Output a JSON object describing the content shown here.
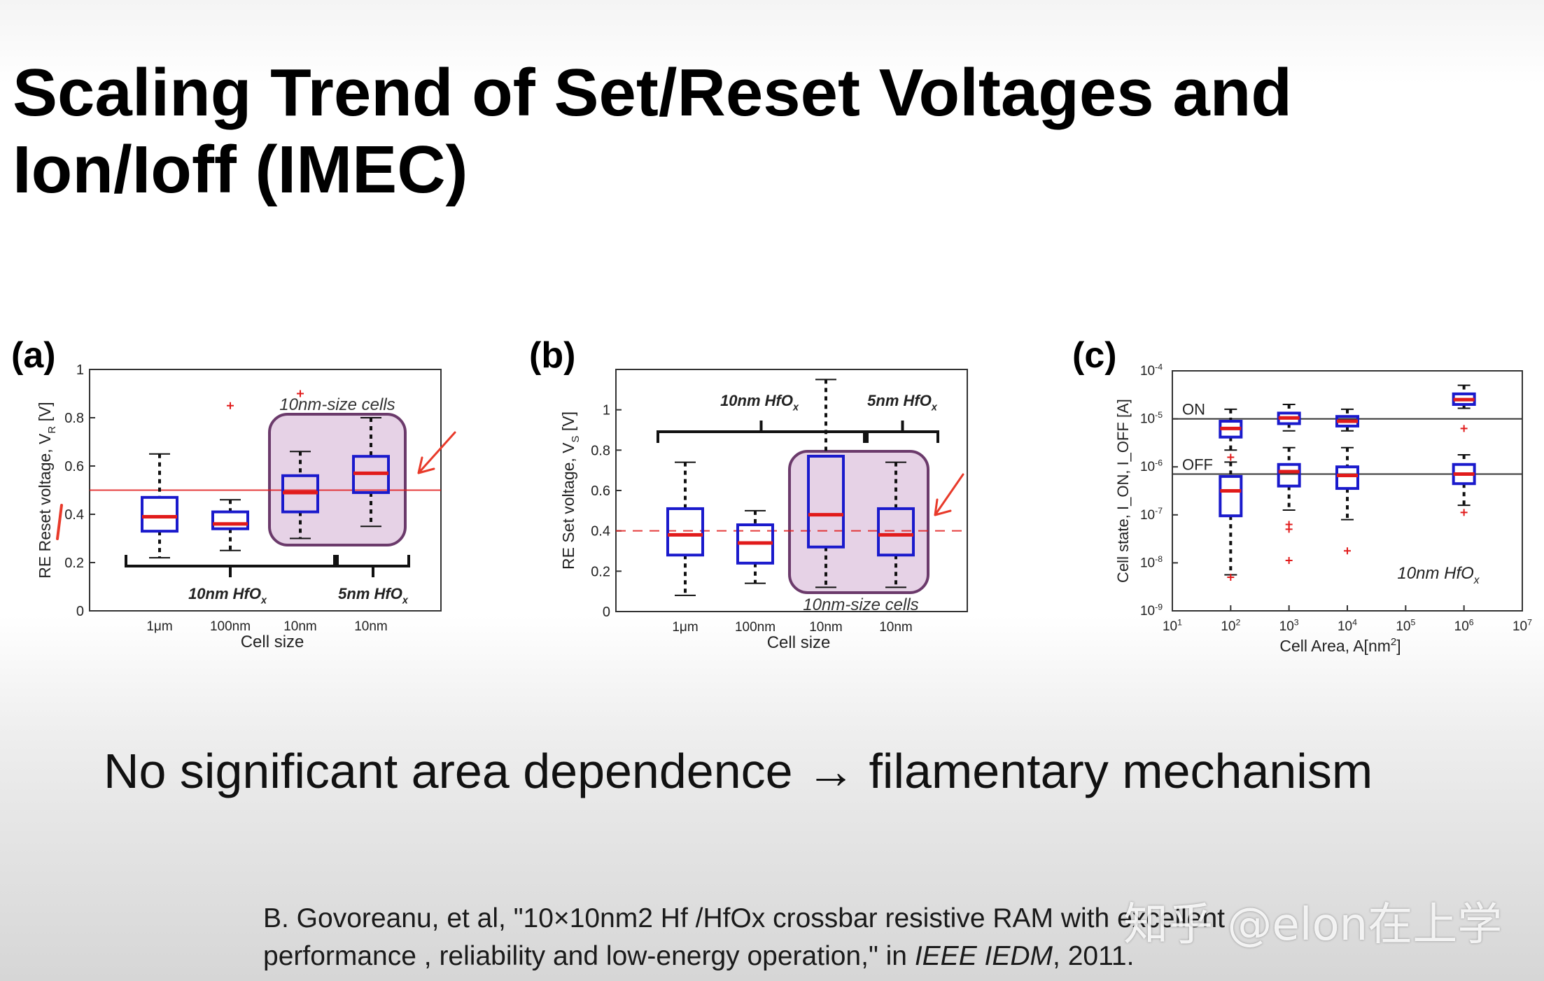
{
  "slide": {
    "title_line1": "Scaling Trend of Set/Reset Voltages and",
    "title_line2": "Ion/Ioff (IMEC)",
    "conclusion": "No significant area dependence → filamentary mechanism",
    "citation_line1": "B. Govoreanu, et al, \"10×10nm2 Hf /HfOx crossbar resistive RAM with excellent",
    "citation_line2_prefix": "performance , reliability and low-energy operation,\" in ",
    "citation_journal": "IEEE IEDM",
    "citation_year": ", 2011.",
    "watermark": "知乎 @elon在上学"
  },
  "colors": {
    "box": "#1a1acc",
    "median": "#e11b1b",
    "outlier": "#e11b1b",
    "highlight_fill": "#e6d2e6",
    "highlight_stroke": "#6b3a6b",
    "annotation": "#e83a2a"
  },
  "chart_data": [
    {
      "panel": "(a)",
      "type": "boxplot",
      "title": "",
      "xlabel": "Cell size",
      "ylabel": "RE Reset voltage, V_R [V]",
      "ylabel_main": "RE Reset voltage, V",
      "ylabel_sub": "R",
      "ylabel_unit": " [V]",
      "ylim": [
        0,
        1
      ],
      "yticks": [
        0,
        0.2,
        0.4,
        0.6,
        0.8,
        1
      ],
      "ytick_labels": [
        "0",
        "0.2",
        "0.4",
        "0.6",
        "0.8",
        "1"
      ],
      "categories": [
        "1μm",
        "100nm",
        "10nm",
        "10nm"
      ],
      "boxes": [
        {
          "category": "1μm",
          "whisker_low": 0.22,
          "q1": 0.33,
          "median": 0.39,
          "q3": 0.47,
          "whisker_high": 0.65,
          "outliers": []
        },
        {
          "category": "100nm",
          "whisker_low": 0.25,
          "q1": 0.34,
          "median": 0.36,
          "q3": 0.41,
          "whisker_high": 0.46,
          "outliers": [
            0.85
          ]
        },
        {
          "category": "10nm",
          "whisker_low": 0.3,
          "q1": 0.41,
          "median": 0.49,
          "q3": 0.56,
          "whisker_high": 0.66,
          "outliers": [
            0.9
          ]
        },
        {
          "category": "10nm",
          "whisker_low": 0.35,
          "q1": 0.49,
          "median": 0.57,
          "q3": 0.64,
          "whisker_high": 0.8,
          "outliers": []
        }
      ],
      "reference_line": 0.5,
      "annotations": {
        "highlight_label": "10nm-size cells",
        "group1_label": "10nm HfO",
        "group1_sub": "x",
        "group2_label": "5nm HfO",
        "group2_sub": "x"
      }
    },
    {
      "panel": "(b)",
      "type": "boxplot",
      "title": "",
      "xlabel": "Cell size",
      "ylabel": "RE Set voltage, V_S [V]",
      "ylabel_main": "RE Set voltage, V",
      "ylabel_sub": "S",
      "ylabel_unit": " [V]",
      "ylim": [
        0,
        1.2
      ],
      "yticks": [
        0,
        0.2,
        0.4,
        0.6,
        0.8,
        1
      ],
      "ytick_labels": [
        "0",
        "0.2",
        "0.4",
        "0.6",
        "0.8",
        "1"
      ],
      "categories": [
        "1μm",
        "100nm",
        "10nm",
        "10nm"
      ],
      "boxes": [
        {
          "category": "1μm",
          "whisker_low": 0.08,
          "q1": 0.28,
          "median": 0.38,
          "q3": 0.51,
          "whisker_high": 0.74,
          "outliers": []
        },
        {
          "category": "100nm",
          "whisker_low": 0.14,
          "q1": 0.24,
          "median": 0.34,
          "q3": 0.43,
          "whisker_high": 0.5,
          "outliers": []
        },
        {
          "category": "10nm",
          "whisker_low": 0.12,
          "q1": 0.32,
          "median": 0.48,
          "q3": 0.77,
          "whisker_high": 1.15,
          "outliers": []
        },
        {
          "category": "10nm",
          "whisker_low": 0.12,
          "q1": 0.28,
          "median": 0.38,
          "q3": 0.51,
          "whisker_high": 0.74,
          "outliers": []
        }
      ],
      "reference_line": 0.4,
      "annotations": {
        "highlight_label": "10nm-size cells",
        "group1_label": "10nm HfO",
        "group1_sub": "x",
        "group2_label": "5nm HfO",
        "group2_sub": "x"
      }
    },
    {
      "panel": "(c)",
      "type": "boxplot",
      "title": "",
      "xlabel": "Cell Area, A[nm²]",
      "xlabel_main": "Cell Area, A[nm",
      "xlabel_sup": "2",
      "xlabel_end": "]",
      "ylabel": "Cell state, I_ON, I_OFF [A]",
      "xscale": "log",
      "yscale": "log",
      "xlim_exp": [
        1,
        7
      ],
      "ylim_exp": [
        -9,
        -4
      ],
      "xtick_exps": [
        "1",
        "2",
        "3",
        "4",
        "5",
        "6",
        "7"
      ],
      "ytick_exps": [
        "-9",
        "-8",
        "-7",
        "-6",
        "-5",
        "-4"
      ],
      "tick_base": "10",
      "on_boxes": [
        {
          "x_exp": 2,
          "whisker_low_exp": -5.65,
          "q1_exp": -5.38,
          "median_exp": -5.2,
          "q3_exp": -5.05,
          "whisker_high_exp": -4.8,
          "outliers_exp": [
            -5.8
          ]
        },
        {
          "x_exp": 3,
          "whisker_low_exp": -5.25,
          "q1_exp": -5.1,
          "median_exp": -4.98,
          "q3_exp": -4.88,
          "whisker_high_exp": -4.7,
          "outliers_exp": []
        },
        {
          "x_exp": 4,
          "whisker_low_exp": -5.25,
          "q1_exp": -5.15,
          "median_exp": -5.05,
          "q3_exp": -4.95,
          "whisker_high_exp": -4.8,
          "outliers_exp": []
        },
        {
          "x_exp": 6,
          "whisker_low_exp": -4.78,
          "q1_exp": -4.7,
          "median_exp": -4.6,
          "q3_exp": -4.48,
          "whisker_high_exp": -4.3,
          "outliers_exp": [
            -5.2
          ]
        }
      ],
      "off_boxes": [
        {
          "x_exp": 2,
          "whisker_low_exp": -8.25,
          "q1_exp": -7.02,
          "median_exp": -6.5,
          "q3_exp": -6.2,
          "whisker_high_exp": -5.9,
          "outliers_exp": [
            -8.3
          ]
        },
        {
          "x_exp": 3,
          "whisker_low_exp": -6.9,
          "q1_exp": -6.4,
          "median_exp": -6.1,
          "q3_exp": -5.95,
          "whisker_high_exp": -5.6,
          "outliers_exp": [
            -7.2,
            -7.3,
            -7.95
          ]
        },
        {
          "x_exp": 4,
          "whisker_low_exp": -7.1,
          "q1_exp": -6.45,
          "median_exp": -6.18,
          "q3_exp": -6.0,
          "whisker_high_exp": -5.6,
          "outliers_exp": [
            -7.75
          ]
        },
        {
          "x_exp": 6,
          "whisker_low_exp": -6.8,
          "q1_exp": -6.35,
          "median_exp": -6.15,
          "q3_exp": -5.95,
          "whisker_high_exp": -5.75,
          "outliers_exp": [
            -6.95
          ]
        }
      ],
      "on_line_exp": -5,
      "off_line_exp": -6.15,
      "annotations": {
        "on_label": "ON",
        "off_label": "OFF",
        "material_label": "10nm HfO",
        "material_sub": "x"
      }
    }
  ]
}
